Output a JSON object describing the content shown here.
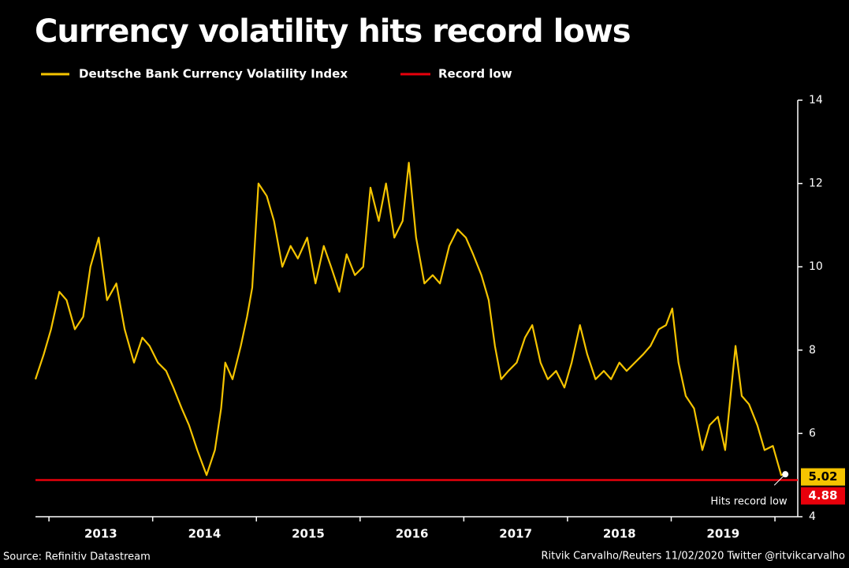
{
  "chart_data": {
    "type": "line",
    "title": "Currency volatility hits record lows",
    "source": "Source: Refinitiv Datastream",
    "credit": "Ritvik Carvalho/Reuters 11/02/2020 Twitter @ritvikcarvalho",
    "annotation": "Hits record low",
    "x": [
      2012.87,
      2012.95,
      2013.02,
      2013.1,
      2013.17,
      2013.25,
      2013.33,
      2013.4,
      2013.48,
      2013.56,
      2013.65,
      2013.73,
      2013.82,
      2013.9,
      2013.97,
      2014.05,
      2014.13,
      2014.2,
      2014.28,
      2014.35,
      2014.43,
      2014.52,
      2014.6,
      2014.66,
      2014.7,
      2014.77,
      2014.85,
      2014.91,
      2014.96,
      2015.02,
      2015.1,
      2015.17,
      2015.25,
      2015.33,
      2015.4,
      2015.49,
      2015.57,
      2015.65,
      2015.72,
      2015.8,
      2015.87,
      2015.95,
      2016.03,
      2016.1,
      2016.18,
      2016.25,
      2016.33,
      2016.41,
      2016.47,
      2016.54,
      2016.62,
      2016.7,
      2016.77,
      2016.86,
      2016.94,
      2017.02,
      2017.09,
      2017.17,
      2017.24,
      2017.3,
      2017.36,
      2017.43,
      2017.51,
      2017.59,
      2017.66,
      2017.74,
      2017.81,
      2017.89,
      2017.97,
      2018.04,
      2018.12,
      2018.19,
      2018.27,
      2018.35,
      2018.42,
      2018.5,
      2018.57,
      2018.65,
      2018.73,
      2018.8,
      2018.88,
      2018.95,
      2019.01,
      2019.07,
      2019.14,
      2019.22,
      2019.3,
      2019.37,
      2019.45,
      2019.52,
      2019.62,
      2019.68,
      2019.75,
      2019.83,
      2019.9,
      2019.98,
      2020.06,
      2020.1
    ],
    "series": [
      {
        "name": "Deutsche Bank Currency Volatility Index",
        "color": "#f5c400",
        "values": [
          7.3,
          7.9,
          8.5,
          9.4,
          9.2,
          8.5,
          8.8,
          10.0,
          10.7,
          9.2,
          9.6,
          8.5,
          7.7,
          8.3,
          8.1,
          7.7,
          7.5,
          7.1,
          6.6,
          6.2,
          5.6,
          5.0,
          5.6,
          6.6,
          7.7,
          7.3,
          8.1,
          8.8,
          9.5,
          12.0,
          11.7,
          11.1,
          10.0,
          10.5,
          10.2,
          10.7,
          9.6,
          10.5,
          10.0,
          9.4,
          10.3,
          9.8,
          10.0,
          11.9,
          11.1,
          12.0,
          10.7,
          11.1,
          12.5,
          10.7,
          9.6,
          9.8,
          9.6,
          10.5,
          10.9,
          10.7,
          10.3,
          9.8,
          9.2,
          8.1,
          7.3,
          7.5,
          7.7,
          8.3,
          8.6,
          7.7,
          7.3,
          7.5,
          7.1,
          7.7,
          8.6,
          7.9,
          7.3,
          7.5,
          7.3,
          7.7,
          7.5,
          7.7,
          7.9,
          8.1,
          8.5,
          8.6,
          9.0,
          7.7,
          6.9,
          6.6,
          5.6,
          6.2,
          6.4,
          5.6,
          8.1,
          6.9,
          6.7,
          6.2,
          5.6,
          5.7,
          5.0,
          5.02
        ]
      }
    ],
    "record_low": {
      "name": "Record low",
      "value": 4.88,
      "color": "#e8000b"
    },
    "xlim": [
      2012.87,
      2020.22
    ],
    "xticks": [
      {
        "value": 2013.5,
        "label": "2013"
      },
      {
        "value": 2014.5,
        "label": "2014"
      },
      {
        "value": 2015.5,
        "label": "2015"
      },
      {
        "value": 2016.5,
        "label": "2016"
      },
      {
        "value": 2017.5,
        "label": "2017"
      },
      {
        "value": 2018.5,
        "label": "2018"
      },
      {
        "value": 2019.5,
        "label": "2019"
      }
    ],
    "minor_xticks": [
      2013,
      2014,
      2015,
      2016,
      2017,
      2018,
      2019,
      2020
    ],
    "ylim": [
      4,
      14
    ],
    "yticks": [
      4,
      6,
      8,
      10,
      12,
      14
    ]
  }
}
